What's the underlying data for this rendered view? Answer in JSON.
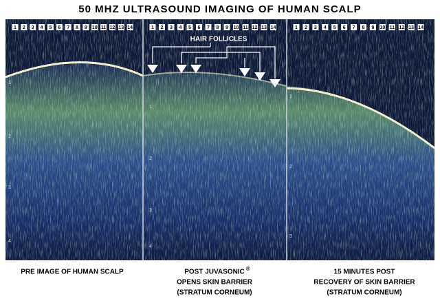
{
  "title": "50 MHZ ULTRASOUND IMAGING OF HUMAN SCALP",
  "annotation": "HAIR FOLLICLES",
  "panels": [
    {
      "scale": [
        "1",
        "2",
        "3",
        "4",
        "5",
        "6",
        "7",
        "8",
        "9",
        "10",
        "11",
        "12",
        "13",
        "14"
      ],
      "depth": [
        "1",
        "2",
        "3",
        "4"
      ],
      "caption": [
        "PRE IMAGE OF HUMAN SCALP"
      ]
    },
    {
      "scale": [
        "1",
        "2",
        "3",
        "4",
        "5",
        "6",
        "7",
        "8",
        "9",
        "10",
        "11",
        "12",
        "13",
        "14"
      ],
      "depth": [
        "1",
        "2",
        "3",
        "4"
      ],
      "caption": [
        "POST JUVASONIC",
        "OPENS SKIN BARRIER",
        "(STRATUM CORNEUM)"
      ],
      "mark": "®"
    },
    {
      "scale": [
        "1",
        "2",
        "3",
        "4",
        "5",
        "6",
        "7",
        "8",
        "9",
        "10",
        "11",
        "12",
        "13",
        "14"
      ],
      "depth": [
        "1",
        "2",
        "3"
      ],
      "caption": [
        "15 MINUTES POST",
        "RECOVERY OF SKIN BARRIER",
        "(STRATUM CORNEUM)"
      ]
    }
  ]
}
